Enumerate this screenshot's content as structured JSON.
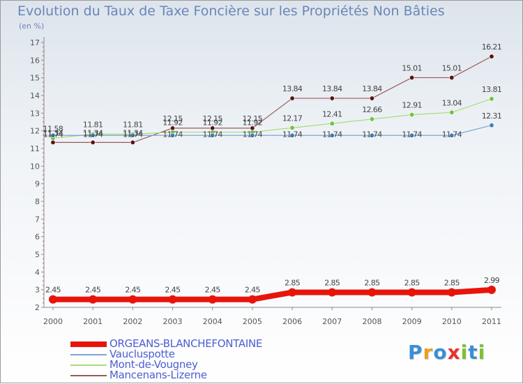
{
  "title": "Evolution du Taux de Taxe Foncière sur les Propriétés Non Bâties",
  "subtitle": "(en %)",
  "logo": {
    "letters": [
      "P",
      "r",
      "o",
      "x",
      "i",
      "t",
      "i"
    ],
    "colors": [
      "#3a8fd6",
      "#e8a020",
      "#3a8fd6",
      "#e8322a",
      "#7cc035",
      "#3a8fd6",
      "#7cc035"
    ]
  },
  "chart_data": {
    "type": "line",
    "x": [
      "2000",
      "2001",
      "2002",
      "2003",
      "2004",
      "2005",
      "2006",
      "2007",
      "2008",
      "2009",
      "2010",
      "2011"
    ],
    "ylim": [
      2,
      17
    ],
    "yticks": [
      "2",
      "3",
      "4",
      "5",
      "6",
      "7",
      "8",
      "9",
      "10",
      "11",
      "12",
      "13",
      "14",
      "15",
      "16",
      "17"
    ],
    "grid": false,
    "legend_position": "bottom",
    "series": [
      {
        "name": "ORGEANS-BLANCHEFONTAINE",
        "color": "#e8140a",
        "width": 8,
        "values": [
          2.45,
          2.45,
          2.45,
          2.45,
          2.45,
          2.45,
          2.85,
          2.85,
          2.85,
          2.85,
          2.85,
          2.99
        ],
        "labels": [
          "2.45",
          "2.45",
          "2.45",
          "2.45",
          "2.45",
          "2.45",
          "2.85",
          "2.85",
          "2.85",
          "2.85",
          "2.85",
          "2.99"
        ]
      },
      {
        "name": "Vaucluspotte",
        "color": "#7aa6d2",
        "marker": "#3a7fc0",
        "width": 1.2,
        "values": [
          11.74,
          11.74,
          11.74,
          11.74,
          11.74,
          11.74,
          11.74,
          11.74,
          11.74,
          11.74,
          11.74,
          12.31
        ],
        "labels": [
          "11.74",
          "11.74",
          "11.74",
          "11.74",
          "11.74",
          "11.74",
          "11.74",
          "11.74",
          "11.74",
          "11.74",
          "11.74",
          "12.31"
        ]
      },
      {
        "name": "Mont-de-Vougney",
        "color": "#a8dc78",
        "marker": "#6cc43c",
        "width": 1.2,
        "values": [
          11.58,
          11.81,
          11.81,
          11.92,
          11.92,
          11.92,
          12.17,
          12.41,
          12.66,
          12.91,
          13.04,
          13.81
        ],
        "labels": [
          "11.58",
          "11.81",
          "11.81",
          "11.92",
          "11.92",
          "11.92",
          "12.17",
          "12.41",
          "12.66",
          "12.91",
          "13.04",
          "13.81"
        ]
      },
      {
        "name": "Mancenans-Lizerne",
        "color": "#9a5a5a",
        "marker": "#5a1212",
        "width": 1.2,
        "values": [
          11.34,
          11.34,
          11.34,
          12.15,
          12.15,
          12.15,
          13.84,
          13.84,
          13.84,
          15.01,
          15.01,
          16.21
        ],
        "labels": [
          "11.34",
          "11.34",
          "11.34",
          "12.15",
          "12.15",
          "12.15",
          "13.84",
          "13.84",
          "13.84",
          "15.01",
          "15.01",
          "16.21"
        ]
      }
    ]
  }
}
